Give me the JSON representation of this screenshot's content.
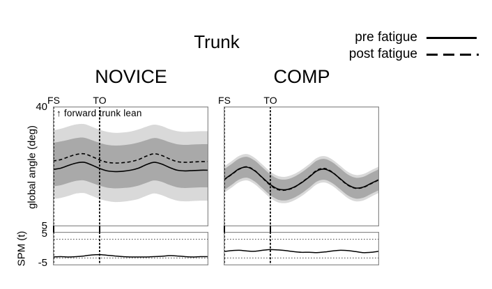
{
  "figure": {
    "title": "Trunk",
    "legend": {
      "items": [
        {
          "label": "pre fatigue",
          "style": "solid"
        },
        {
          "label": "post fatigue",
          "style": "dashed"
        }
      ]
    },
    "novice": {
      "title": "NOVICE",
      "fs": "FS",
      "to": "TO",
      "annotation": "↑ forward trunk lean"
    },
    "comp": {
      "title": "COMP",
      "fs": "FS",
      "to": "TO"
    },
    "axes": {
      "ylabel_main": "global angle (deg)",
      "ytick_main_top": "40",
      "ytick_main_bottom": "5",
      "ylabel_spm": "SPM (t)",
      "ytick_spm_top": "5",
      "ytick_spm_bottom": "-5"
    },
    "colors": {
      "band_outer": "#d9d9d9",
      "band_inner": "#a9a9a9",
      "line": "#000000",
      "frame": "#8a8a8a",
      "threshold": "#4d4d4d"
    }
  },
  "chart_data": [
    {
      "type": "line",
      "panel": "novice_main",
      "title": "NOVICE",
      "xlabel": "",
      "ylabel": "global angle (deg)",
      "ylim": [
        5,
        40
      ],
      "yticks": [
        5,
        40
      ],
      "events": {
        "FS": 0,
        "TO": 30
      },
      "annotation": "↑ forward trunk lean",
      "x": [
        0,
        5,
        10,
        15,
        20,
        25,
        30,
        35,
        40,
        45,
        50,
        55,
        60,
        65,
        70,
        75,
        80,
        85,
        90,
        95,
        100
      ],
      "series": [
        {
          "name": "pre fatigue",
          "style": "solid",
          "values": [
            21.6,
            22.0,
            22.8,
            23.5,
            23.7,
            22.9,
            21.9,
            21.2,
            21.0,
            21.1,
            21.4,
            22.0,
            23.0,
            23.7,
            23.2,
            22.2,
            21.4,
            21.2,
            21.3,
            21.4,
            21.4
          ]
        },
        {
          "name": "post fatigue",
          "style": "dashed",
          "values": [
            24.1,
            24.5,
            25.3,
            26.0,
            26.2,
            25.4,
            24.4,
            23.7,
            23.5,
            23.6,
            23.9,
            24.5,
            25.5,
            26.2,
            25.7,
            24.7,
            23.9,
            23.7,
            23.8,
            23.9,
            23.9
          ]
        }
      ],
      "bands": {
        "inner_upper": [
          29.4,
          29.8,
          30.3,
          30.8,
          30.9,
          30.2,
          29.4,
          28.8,
          28.6,
          28.7,
          29.0,
          29.5,
          30.2,
          30.8,
          30.4,
          29.6,
          29.0,
          28.8,
          28.9,
          29.0,
          29.0
        ],
        "inner_lower": [
          16.7,
          17.0,
          17.7,
          18.3,
          18.4,
          17.7,
          16.9,
          16.3,
          16.1,
          16.2,
          16.4,
          16.9,
          17.7,
          18.4,
          18.0,
          17.1,
          16.4,
          16.2,
          16.3,
          16.4,
          16.4
        ],
        "outer_upper": [
          33.0,
          33.5,
          34.2,
          34.8,
          34.9,
          34.1,
          33.2,
          32.6,
          32.3,
          32.4,
          32.7,
          33.3,
          34.1,
          34.7,
          34.3,
          33.4,
          32.8,
          32.6,
          32.7,
          32.8,
          32.8
        ],
        "outer_lower": [
          13.0,
          13.3,
          13.9,
          14.6,
          14.7,
          13.9,
          13.0,
          12.4,
          12.1,
          12.2,
          12.5,
          13.0,
          13.9,
          14.6,
          14.1,
          13.2,
          12.5,
          12.3,
          12.4,
          12.5,
          12.5
        ]
      }
    },
    {
      "type": "line",
      "panel": "comp_main",
      "title": "COMP",
      "xlabel": "",
      "ylabel": "global angle (deg)",
      "ylim": [
        5,
        40
      ],
      "yticks": [
        5,
        40
      ],
      "events": {
        "FS": 0,
        "TO": 30
      },
      "x": [
        0,
        5,
        10,
        15,
        20,
        25,
        30,
        35,
        40,
        45,
        50,
        55,
        60,
        65,
        70,
        75,
        80,
        85,
        90,
        95,
        100
      ],
      "series": [
        {
          "name": "pre fatigue",
          "style": "solid",
          "values": [
            18.6,
            20.2,
            21.8,
            22.3,
            21.2,
            19.2,
            17.2,
            15.9,
            15.7,
            16.4,
            17.7,
            19.4,
            21.2,
            21.7,
            20.7,
            18.9,
            17.1,
            16.2,
            16.5,
            17.6,
            18.7
          ]
        },
        {
          "name": "post fatigue",
          "style": "dashed",
          "values": [
            18.5,
            20.1,
            21.7,
            22.4,
            21.3,
            19.1,
            17.0,
            15.7,
            15.6,
            16.3,
            17.8,
            19.5,
            21.4,
            21.9,
            20.8,
            18.8,
            17.0,
            16.1,
            16.4,
            17.5,
            18.6
          ]
        }
      ],
      "bands": {
        "inner_upper": [
          21.6,
          23.2,
          24.8,
          25.3,
          24.2,
          22.2,
          20.2,
          18.9,
          18.7,
          19.4,
          20.7,
          22.4,
          24.2,
          24.7,
          23.7,
          21.9,
          20.1,
          19.2,
          19.5,
          20.6,
          21.7
        ],
        "inner_lower": [
          15.5,
          17.1,
          18.7,
          19.2,
          18.1,
          16.1,
          14.1,
          12.8,
          12.6,
          13.3,
          14.6,
          16.3,
          18.1,
          18.6,
          17.6,
          15.8,
          14.0,
          13.1,
          13.4,
          14.5,
          15.6
        ],
        "outer_upper": [
          22.4,
          24.0,
          25.6,
          26.1,
          25.0,
          23.0,
          21.0,
          19.7,
          19.5,
          20.2,
          21.5,
          23.2,
          25.0,
          25.5,
          24.5,
          22.7,
          20.9,
          20.0,
          20.3,
          21.4,
          22.5
        ],
        "outer_lower": [
          14.7,
          16.3,
          17.9,
          18.4,
          17.3,
          15.3,
          13.3,
          12.0,
          11.8,
          12.5,
          13.8,
          15.5,
          17.3,
          17.8,
          16.8,
          15.0,
          13.2,
          12.3,
          12.6,
          13.7,
          14.8
        ]
      }
    },
    {
      "type": "line",
      "panel": "novice_spm",
      "ylabel": "SPM (t)",
      "ylim": [
        -5,
        5
      ],
      "yticks": [
        -5,
        5
      ],
      "thresholds": [
        2.8,
        -2.8
      ],
      "events": {
        "FS": 0,
        "TO": 30
      },
      "x": [
        0,
        5,
        10,
        15,
        20,
        25,
        30,
        35,
        40,
        45,
        50,
        55,
        60,
        65,
        70,
        75,
        80,
        85,
        90,
        95,
        100
      ],
      "values": [
        -2.5,
        -2.4,
        -2.5,
        -2.4,
        -2.2,
        -1.9,
        -1.8,
        -2.0,
        -2.2,
        -2.4,
        -2.5,
        -2.5,
        -2.5,
        -2.4,
        -2.3,
        -2.1,
        -2.2,
        -2.4,
        -2.5,
        -2.4,
        -2.4
      ]
    },
    {
      "type": "line",
      "panel": "comp_spm",
      "ylabel": "SPM (t)",
      "ylim": [
        -5,
        5
      ],
      "yticks": [
        -5,
        5
      ],
      "thresholds": [
        2.8,
        -2.8
      ],
      "events": {
        "FS": 0,
        "TO": 30
      },
      "x": [
        0,
        5,
        10,
        15,
        20,
        25,
        30,
        35,
        40,
        45,
        50,
        55,
        60,
        65,
        70,
        75,
        80,
        85,
        90,
        95,
        100
      ],
      "values": [
        -0.9,
        -0.6,
        -0.5,
        -0.7,
        -0.8,
        -0.5,
        -0.3,
        -0.4,
        -0.6,
        -0.9,
        -1.1,
        -1.1,
        -1.2,
        -1.0,
        -0.7,
        -0.5,
        -0.6,
        -0.9,
        -1.2,
        -1.1,
        -0.8
      ]
    }
  ]
}
